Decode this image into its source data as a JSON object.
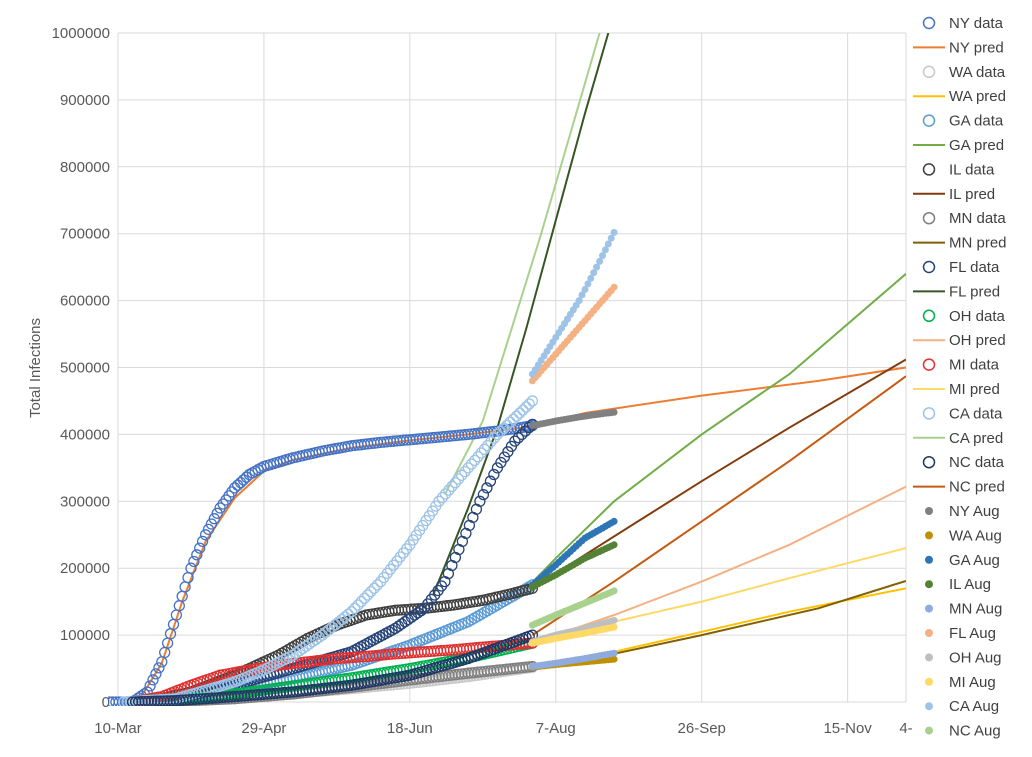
{
  "chart_data": {
    "type": "scatter",
    "title": "",
    "xlabel": "",
    "ylabel": "Total Infections",
    "ylim": [
      0,
      1000000
    ],
    "xlim": [
      0,
      270
    ],
    "grid": true,
    "legend": "right",
    "x_ticks": [
      {
        "value": 0,
        "label": "10-Mar"
      },
      {
        "value": 50,
        "label": "29-Apr"
      },
      {
        "value": 100,
        "label": "18-Jun"
      },
      {
        "value": 150,
        "label": "7-Aug"
      },
      {
        "value": 200,
        "label": "26-Sep"
      },
      {
        "value": 250,
        "label": "15-Nov"
      },
      {
        "value": 270,
        "label": "4-"
      }
    ],
    "y_ticks": [
      0,
      100000,
      200000,
      300000,
      400000,
      500000,
      600000,
      700000,
      800000,
      900000,
      1000000
    ],
    "series": [
      {
        "name": "NY data",
        "kind": "data",
        "color": "#4472c4",
        "points": [
          [
            -3,
            0
          ],
          [
            5,
            0
          ],
          [
            10,
            15000
          ],
          [
            15,
            60000
          ],
          [
            20,
            130000
          ],
          [
            25,
            200000
          ],
          [
            30,
            250000
          ],
          [
            35,
            290000
          ],
          [
            40,
            320000
          ],
          [
            45,
            340000
          ],
          [
            50,
            352000
          ],
          [
            60,
            365000
          ],
          [
            70,
            375000
          ],
          [
            80,
            383000
          ],
          [
            90,
            388000
          ],
          [
            100,
            392000
          ],
          [
            110,
            396000
          ],
          [
            120,
            400000
          ],
          [
            130,
            405000
          ],
          [
            138,
            410000
          ],
          [
            142,
            413000
          ]
        ]
      },
      {
        "name": "NY pred",
        "kind": "pred",
        "color": "#ed7d31",
        "points": [
          [
            8,
            8000
          ],
          [
            15,
            58000
          ],
          [
            22,
            150000
          ],
          [
            30,
            240000
          ],
          [
            40,
            305000
          ],
          [
            50,
            345000
          ],
          [
            60,
            362000
          ],
          [
            80,
            380000
          ],
          [
            100,
            391000
          ],
          [
            120,
            400000
          ],
          [
            142,
            412000
          ],
          [
            160,
            432000
          ],
          [
            200,
            458000
          ],
          [
            240,
            480000
          ],
          [
            270,
            500000
          ]
        ]
      },
      {
        "name": "WA data",
        "kind": "data",
        "color": "#c9c9c9",
        "points": [
          [
            2,
            0
          ],
          [
            10,
            1000
          ],
          [
            20,
            3000
          ],
          [
            40,
            8000
          ],
          [
            60,
            13000
          ],
          [
            80,
            20000
          ],
          [
            100,
            28000
          ],
          [
            120,
            38000
          ],
          [
            142,
            52000
          ]
        ]
      },
      {
        "name": "WA pred",
        "kind": "pred",
        "color": "#ffc000",
        "points": [
          [
            142,
            52000
          ],
          [
            170,
            75000
          ],
          [
            200,
            105000
          ],
          [
            230,
            135000
          ],
          [
            270,
            170000
          ]
        ]
      },
      {
        "name": "GA data",
        "kind": "data",
        "color": "#5b9bd5",
        "points": [
          [
            5,
            0
          ],
          [
            15,
            3000
          ],
          [
            25,
            8000
          ],
          [
            40,
            20000
          ],
          [
            60,
            35000
          ],
          [
            80,
            55000
          ],
          [
            100,
            85000
          ],
          [
            120,
            120000
          ],
          [
            142,
            175000
          ]
        ]
      },
      {
        "name": "GA pred",
        "kind": "pred",
        "color": "#70ad47",
        "points": [
          [
            140,
            170000
          ],
          [
            150,
            215000
          ],
          [
            170,
            300000
          ],
          [
            200,
            400000
          ],
          [
            230,
            490000
          ],
          [
            270,
            640000
          ]
        ]
      },
      {
        "name": "IL data",
        "kind": "data",
        "color": "#404040",
        "points": [
          [
            5,
            0
          ],
          [
            15,
            5000
          ],
          [
            25,
            15000
          ],
          [
            40,
            40000
          ],
          [
            55,
            70000
          ],
          [
            65,
            95000
          ],
          [
            75,
            115000
          ],
          [
            85,
            130000
          ],
          [
            95,
            137000
          ],
          [
            105,
            140000
          ],
          [
            115,
            145000
          ],
          [
            125,
            152000
          ],
          [
            135,
            162000
          ],
          [
            142,
            170000
          ]
        ]
      },
      {
        "name": "IL pred",
        "kind": "pred",
        "color": "#843c0c",
        "points": [
          [
            142,
            170000
          ],
          [
            160,
            220000
          ],
          [
            180,
            275000
          ],
          [
            200,
            330000
          ],
          [
            230,
            410000
          ],
          [
            270,
            512000
          ]
        ]
      },
      {
        "name": "MN data",
        "kind": "data",
        "color": "#7f7f7f",
        "points": [
          [
            5,
            0
          ],
          [
            20,
            1000
          ],
          [
            40,
            5000
          ],
          [
            60,
            12000
          ],
          [
            80,
            22000
          ],
          [
            100,
            33000
          ],
          [
            120,
            43000
          ],
          [
            142,
            53000
          ]
        ]
      },
      {
        "name": "MN pred",
        "kind": "pred",
        "color": "#806000",
        "points": [
          [
            142,
            53000
          ],
          [
            170,
            72000
          ],
          [
            200,
            100000
          ],
          [
            240,
            140000
          ],
          [
            270,
            181000
          ]
        ]
      },
      {
        "name": "FL data",
        "kind": "data",
        "color": "#264478",
        "points": [
          [
            5,
            0
          ],
          [
            20,
            5000
          ],
          [
            40,
            25000
          ],
          [
            60,
            50000
          ],
          [
            80,
            75000
          ],
          [
            95,
            110000
          ],
          [
            105,
            140000
          ],
          [
            112,
            180000
          ],
          [
            118,
            240000
          ],
          [
            124,
            300000
          ],
          [
            130,
            350000
          ],
          [
            136,
            390000
          ],
          [
            142,
            415000
          ]
        ]
      },
      {
        "name": "FL pred",
        "kind": "pred",
        "color": "#375623",
        "points": [
          [
            108,
            160000
          ],
          [
            120,
            290000
          ],
          [
            130,
            410000
          ],
          [
            140,
            560000
          ],
          [
            150,
            720000
          ],
          [
            160,
            880000
          ],
          [
            168,
            1000000
          ]
        ]
      },
      {
        "name": "OH data",
        "kind": "data",
        "color": "#00b050",
        "points": [
          [
            5,
            0
          ],
          [
            20,
            3000
          ],
          [
            40,
            12000
          ],
          [
            60,
            24000
          ],
          [
            80,
            36000
          ],
          [
            100,
            50000
          ],
          [
            120,
            66000
          ],
          [
            142,
            88000
          ]
        ]
      },
      {
        "name": "OH pred",
        "kind": "pred",
        "color": "#f4b183",
        "points": [
          [
            142,
            88000
          ],
          [
            170,
            130000
          ],
          [
            200,
            180000
          ],
          [
            230,
            235000
          ],
          [
            270,
            322000
          ]
        ]
      },
      {
        "name": "MI data",
        "kind": "data",
        "color": "#e03030",
        "points": [
          [
            5,
            0
          ],
          [
            15,
            8000
          ],
          [
            25,
            25000
          ],
          [
            35,
            40000
          ],
          [
            45,
            48000
          ],
          [
            55,
            55000
          ],
          [
            65,
            60000
          ],
          [
            75,
            65000
          ],
          [
            85,
            68000
          ],
          [
            95,
            72000
          ],
          [
            105,
            75000
          ],
          [
            115,
            78000
          ],
          [
            125,
            82000
          ],
          [
            142,
            88000
          ]
        ]
      },
      {
        "name": "MI pred",
        "kind": "pred",
        "color": "#ffd966",
        "points": [
          [
            142,
            88000
          ],
          [
            170,
            120000
          ],
          [
            200,
            150000
          ],
          [
            230,
            185000
          ],
          [
            270,
            230000
          ]
        ]
      },
      {
        "name": "CA data",
        "kind": "data",
        "color": "#9dc3e6",
        "points": [
          [
            2,
            0
          ],
          [
            20,
            5000
          ],
          [
            40,
            30000
          ],
          [
            50,
            48000
          ],
          [
            60,
            70000
          ],
          [
            70,
            100000
          ],
          [
            80,
            135000
          ],
          [
            90,
            180000
          ],
          [
            100,
            235000
          ],
          [
            110,
            300000
          ],
          [
            120,
            350000
          ],
          [
            130,
            400000
          ],
          [
            142,
            450000
          ]
        ]
      },
      {
        "name": "CA pred",
        "kind": "pred",
        "color": "#a9d18e",
        "points": [
          [
            112,
            310000
          ],
          [
            125,
            420000
          ],
          [
            135,
            560000
          ],
          [
            145,
            700000
          ],
          [
            155,
            850000
          ],
          [
            165,
            1000000
          ]
        ]
      },
      {
        "name": "NC data",
        "kind": "data",
        "color": "#203864",
        "points": [
          [
            5,
            0
          ],
          [
            20,
            2000
          ],
          [
            40,
            8000
          ],
          [
            60,
            15000
          ],
          [
            80,
            25000
          ],
          [
            100,
            40000
          ],
          [
            120,
            65000
          ],
          [
            142,
            100000
          ]
        ]
      },
      {
        "name": "NC pred",
        "kind": "pred",
        "color": "#c55a11",
        "points": [
          [
            142,
            100000
          ],
          [
            170,
            180000
          ],
          [
            200,
            270000
          ],
          [
            230,
            360000
          ],
          [
            270,
            487000
          ]
        ]
      },
      {
        "name": "NY Aug",
        "kind": "aug",
        "color": "#808080",
        "points": [
          [
            142,
            413000
          ],
          [
            150,
            420000
          ],
          [
            158,
            426000
          ],
          [
            166,
            431000
          ],
          [
            170,
            433000
          ]
        ]
      },
      {
        "name": "WA Aug",
        "kind": "aug",
        "color": "#bf9000",
        "points": [
          [
            142,
            52000
          ],
          [
            150,
            56000
          ],
          [
            160,
            60000
          ],
          [
            170,
            64000
          ]
        ]
      },
      {
        "name": "GA Aug",
        "kind": "aug",
        "color": "#2e75b6",
        "points": [
          [
            142,
            175000
          ],
          [
            150,
            205000
          ],
          [
            160,
            245000
          ],
          [
            170,
            270000
          ]
        ]
      },
      {
        "name": "IL Aug",
        "kind": "aug",
        "color": "#548235",
        "points": [
          [
            142,
            172000
          ],
          [
            150,
            190000
          ],
          [
            160,
            215000
          ],
          [
            170,
            235000
          ]
        ]
      },
      {
        "name": "MN Aug",
        "kind": "aug",
        "color": "#8faadc",
        "points": [
          [
            142,
            53000
          ],
          [
            150,
            58000
          ],
          [
            160,
            65000
          ],
          [
            170,
            73000
          ]
        ]
      },
      {
        "name": "FL Aug",
        "kind": "aug",
        "color": "#f4b183",
        "points": [
          [
            142,
            480000
          ],
          [
            148,
            510000
          ],
          [
            155,
            545000
          ],
          [
            162,
            580000
          ],
          [
            170,
            620000
          ]
        ]
      },
      {
        "name": "OH Aug",
        "kind": "aug",
        "color": "#bfbfbf",
        "points": [
          [
            142,
            90000
          ],
          [
            150,
            100000
          ],
          [
            160,
            110000
          ],
          [
            170,
            122000
          ]
        ]
      },
      {
        "name": "MI Aug",
        "kind": "aug",
        "color": "#ffd966",
        "points": [
          [
            142,
            88000
          ],
          [
            150,
            95000
          ],
          [
            160,
            103000
          ],
          [
            170,
            112000
          ]
        ]
      },
      {
        "name": "CA Aug",
        "kind": "aug",
        "color": "#9dc3e6",
        "points": [
          [
            142,
            490000
          ],
          [
            150,
            545000
          ],
          [
            158,
            600000
          ],
          [
            164,
            650000
          ],
          [
            170,
            702000
          ]
        ]
      },
      {
        "name": "NC Aug",
        "kind": "aug",
        "color": "#a9d18e",
        "points": [
          [
            142,
            115000
          ],
          [
            150,
            130000
          ],
          [
            160,
            148000
          ],
          [
            170,
            166000
          ]
        ]
      }
    ]
  }
}
